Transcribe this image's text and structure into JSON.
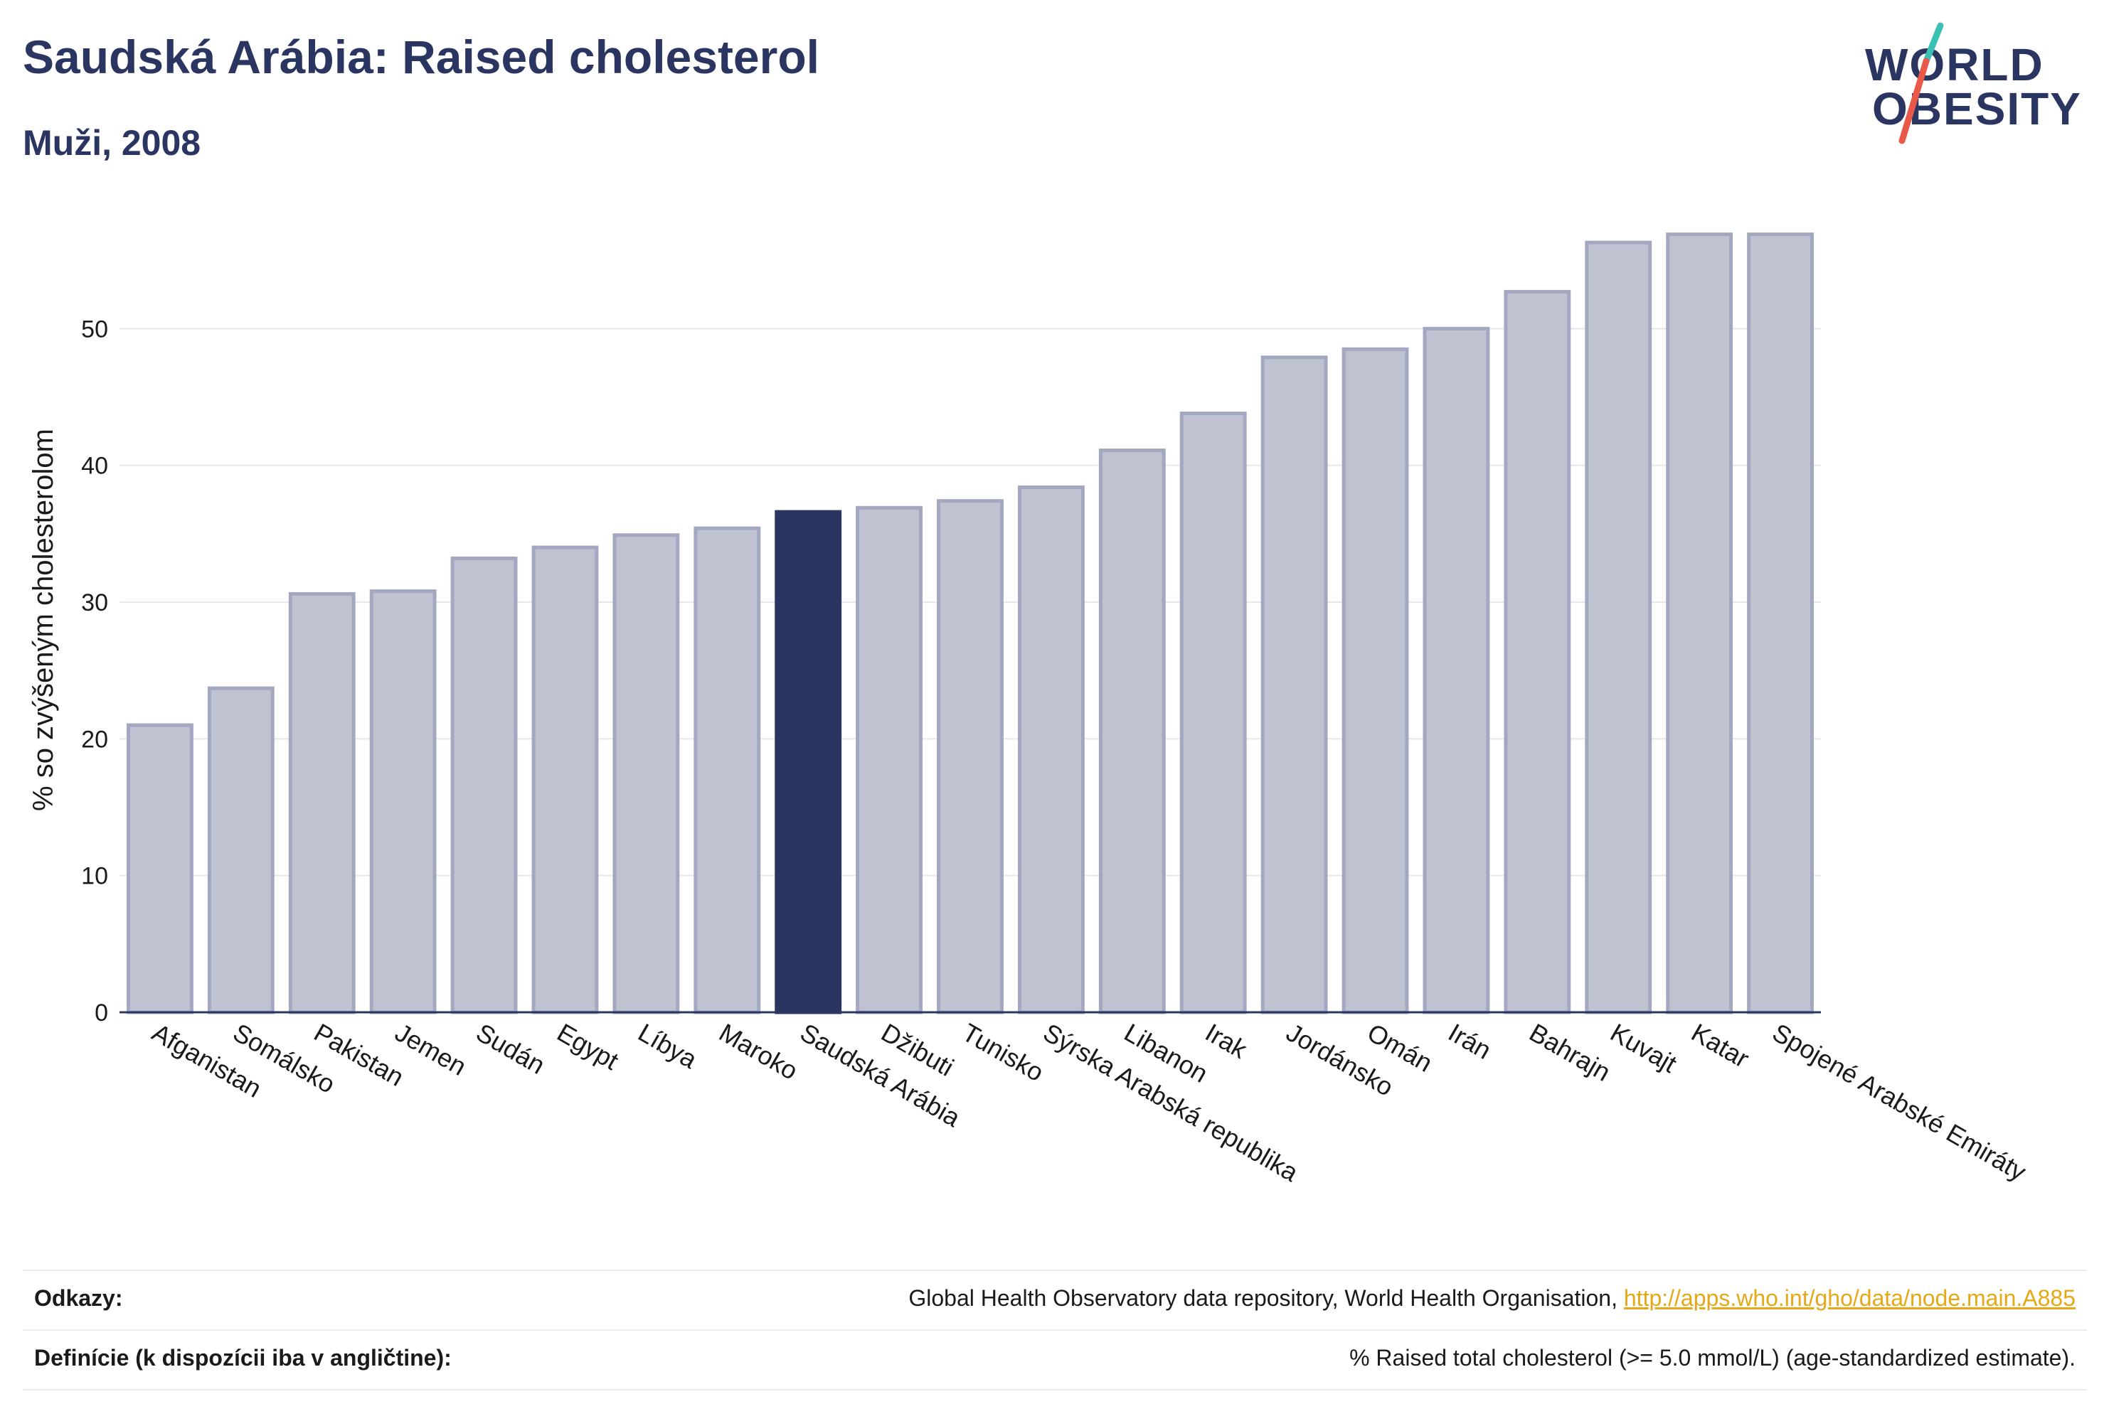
{
  "header": {
    "title": "Saudská Arábia: Raised cholesterol",
    "subtitle": "Muži, 2008"
  },
  "logo": {
    "line1": "WORLD",
    "line2": "OBESITY",
    "accent_teal": "#3cbfb4",
    "accent_red": "#e8594a"
  },
  "colors": {
    "highlight": "#2b3561",
    "bar": "#bfc2d0",
    "bar_edge": "#a3a8c0",
    "grid": "#e6e6ee",
    "axis": "#2b3561"
  },
  "chart_data": {
    "type": "bar",
    "ylabel": "% so zvýšeným cholesterolom",
    "xlabel": "",
    "ylim": [
      0,
      60
    ],
    "yticks": [
      0,
      10,
      20,
      30,
      40,
      50
    ],
    "grid": true,
    "highlight": "Saudská Arábia",
    "categories": [
      "Afganistan",
      "Somálsko",
      "Pakistan",
      "Jemen",
      "Sudán",
      "Egypt",
      "Líbya",
      "Maroko",
      "Saudská Arábia",
      "Džibuti",
      "Tunisko",
      "Sýrska Arabská republika",
      "Libanon",
      "Irak",
      "Jordánsko",
      "Omán",
      "Irán",
      "Bahrajn",
      "Kuvajt",
      "Katar",
      "Spojené Arabské Emiráty"
    ],
    "values": [
      21.0,
      23.7,
      30.6,
      30.8,
      33.2,
      34.0,
      34.9,
      35.4,
      36.6,
      36.9,
      37.4,
      38.4,
      41.1,
      43.8,
      47.9,
      48.5,
      50.0,
      52.7,
      56.3,
      56.9,
      56.9
    ]
  },
  "references": {
    "sources_label": "Odkazy:",
    "sources_text": "Global Health Observatory data repository, World Health Organisation, ",
    "sources_link": "http://apps.who.int/gho/data/node.main.A885",
    "definition_label": "Definície (k dispozícii iba v angličtine):",
    "definition_text": "% Raised total cholesterol (>= 5.0 mmol/L) (age-standardized estimate)."
  }
}
